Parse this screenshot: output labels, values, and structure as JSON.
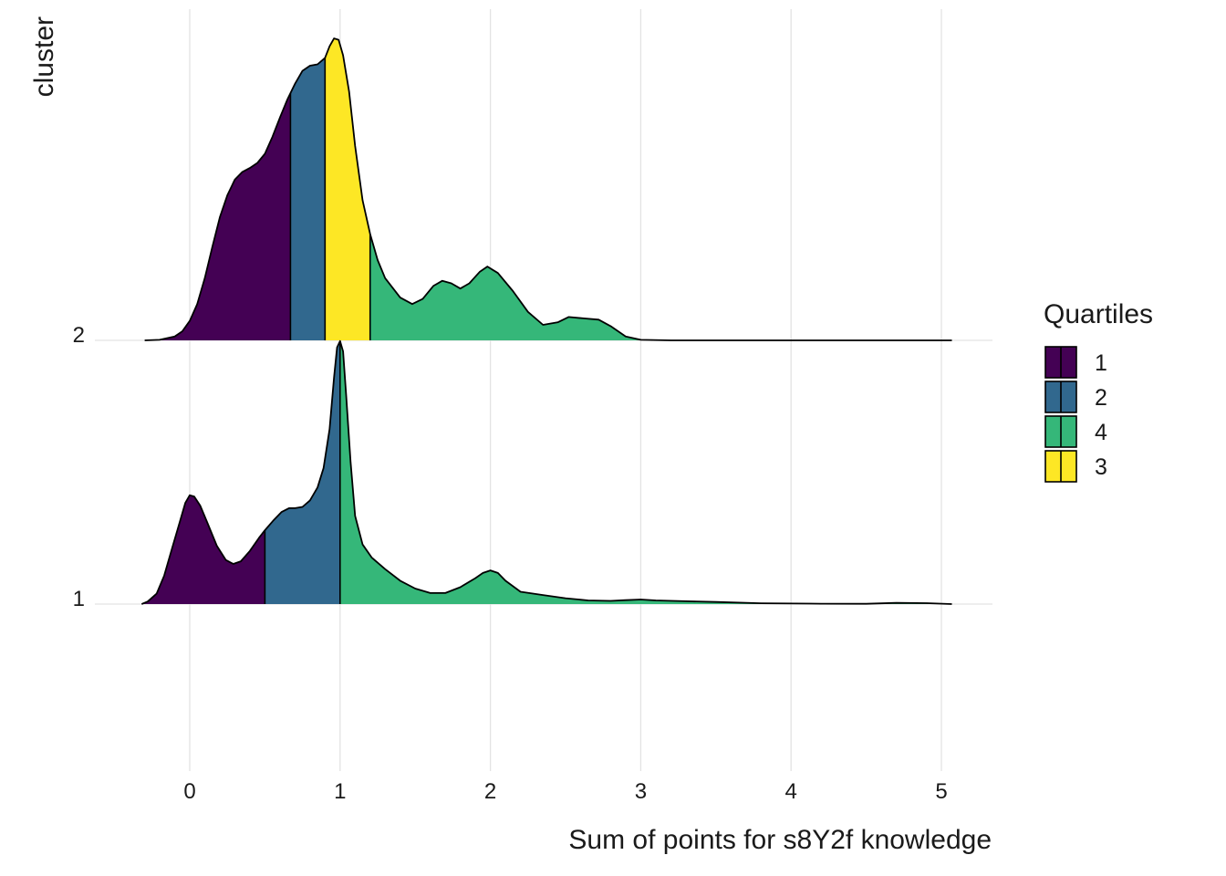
{
  "chart_data": {
    "type": "ridgeline-density",
    "title": "",
    "xlabel": "Sum of points for s8Y2f knowledge",
    "ylabel": "cluster",
    "xlim": [
      -0.6,
      5.3
    ],
    "x_ticks": [
      0,
      1,
      2,
      3,
      4,
      5
    ],
    "y_categories": [
      "1",
      "2"
    ],
    "grid": "vertical major lines",
    "legend": {
      "title": "Quartiles",
      "position": "right",
      "items": [
        {
          "label": "1",
          "color": "#440154"
        },
        {
          "label": "2",
          "color": "#31688E"
        },
        {
          "label": "4",
          "color": "#35B779"
        },
        {
          "label": "3",
          "color": "#FDE725"
        }
      ]
    },
    "series": [
      {
        "cluster": "1",
        "quartile_cuts": [
          0.5,
          1.0
        ],
        "fill_order": [
          "1",
          "2",
          "4"
        ],
        "density": [
          [
            -0.32,
            0
          ],
          [
            -0.28,
            0.02
          ],
          [
            -0.22,
            0.08
          ],
          [
            -0.17,
            0.22
          ],
          [
            -0.12,
            0.42
          ],
          [
            -0.07,
            0.62
          ],
          [
            -0.03,
            0.78
          ],
          [
            0.0,
            0.84
          ],
          [
            0.03,
            0.83
          ],
          [
            0.07,
            0.76
          ],
          [
            0.12,
            0.62
          ],
          [
            0.18,
            0.45
          ],
          [
            0.24,
            0.34
          ],
          [
            0.29,
            0.31
          ],
          [
            0.34,
            0.33
          ],
          [
            0.4,
            0.41
          ],
          [
            0.46,
            0.51
          ],
          [
            0.5,
            0.57
          ],
          [
            0.56,
            0.65
          ],
          [
            0.61,
            0.71
          ],
          [
            0.66,
            0.74
          ],
          [
            0.7,
            0.74
          ],
          [
            0.75,
            0.75
          ],
          [
            0.8,
            0.8
          ],
          [
            0.85,
            0.9
          ],
          [
            0.89,
            1.05
          ],
          [
            0.93,
            1.35
          ],
          [
            0.96,
            1.75
          ],
          [
            0.98,
            1.98
          ],
          [
            1.0,
            2.03
          ],
          [
            1.02,
            1.95
          ],
          [
            1.04,
            1.62
          ],
          [
            1.07,
            1.1
          ],
          [
            1.1,
            0.68
          ],
          [
            1.15,
            0.46
          ],
          [
            1.21,
            0.36
          ],
          [
            1.3,
            0.27
          ],
          [
            1.4,
            0.18
          ],
          [
            1.5,
            0.12
          ],
          [
            1.6,
            0.085
          ],
          [
            1.7,
            0.085
          ],
          [
            1.8,
            0.13
          ],
          [
            1.9,
            0.2
          ],
          [
            1.95,
            0.24
          ],
          [
            2.0,
            0.26
          ],
          [
            2.05,
            0.24
          ],
          [
            2.1,
            0.18
          ],
          [
            2.2,
            0.095
          ],
          [
            2.35,
            0.07
          ],
          [
            2.5,
            0.045
          ],
          [
            2.65,
            0.028
          ],
          [
            2.8,
            0.025
          ],
          [
            2.9,
            0.03
          ],
          [
            3.0,
            0.035
          ],
          [
            3.1,
            0.028
          ],
          [
            3.3,
            0.022
          ],
          [
            3.5,
            0.016
          ],
          [
            3.8,
            0.006
          ],
          [
            4.2,
            0.003
          ],
          [
            4.5,
            0.002
          ],
          [
            4.7,
            0.009
          ],
          [
            4.9,
            0.007
          ],
          [
            5.07,
            0
          ]
        ]
      },
      {
        "cluster": "2",
        "quartile_cuts": [
          0.67,
          0.9,
          1.2
        ],
        "fill_order": [
          "1",
          "2",
          "3",
          "4"
        ],
        "density": [
          [
            -0.3,
            0
          ],
          [
            -0.2,
            0.004
          ],
          [
            -0.1,
            0.03
          ],
          [
            -0.05,
            0.07
          ],
          [
            0.0,
            0.15
          ],
          [
            0.05,
            0.28
          ],
          [
            0.1,
            0.48
          ],
          [
            0.15,
            0.72
          ],
          [
            0.2,
            0.95
          ],
          [
            0.25,
            1.12
          ],
          [
            0.3,
            1.24
          ],
          [
            0.35,
            1.3
          ],
          [
            0.4,
            1.33
          ],
          [
            0.45,
            1.37
          ],
          [
            0.5,
            1.44
          ],
          [
            0.55,
            1.57
          ],
          [
            0.6,
            1.72
          ],
          [
            0.65,
            1.86
          ],
          [
            0.7,
            1.98
          ],
          [
            0.75,
            2.08
          ],
          [
            0.8,
            2.12
          ],
          [
            0.85,
            2.13
          ],
          [
            0.9,
            2.18
          ],
          [
            0.93,
            2.27
          ],
          [
            0.96,
            2.33
          ],
          [
            0.99,
            2.32
          ],
          [
            1.02,
            2.2
          ],
          [
            1.06,
            1.92
          ],
          [
            1.1,
            1.5
          ],
          [
            1.15,
            1.08
          ],
          [
            1.2,
            0.82
          ],
          [
            1.25,
            0.62
          ],
          [
            1.3,
            0.48
          ],
          [
            1.4,
            0.33
          ],
          [
            1.48,
            0.28
          ],
          [
            1.55,
            0.32
          ],
          [
            1.62,
            0.42
          ],
          [
            1.68,
            0.46
          ],
          [
            1.74,
            0.44
          ],
          [
            1.8,
            0.4
          ],
          [
            1.86,
            0.44
          ],
          [
            1.93,
            0.53
          ],
          [
            1.98,
            0.57
          ],
          [
            2.05,
            0.52
          ],
          [
            2.15,
            0.38
          ],
          [
            2.25,
            0.22
          ],
          [
            2.35,
            0.12
          ],
          [
            2.45,
            0.14
          ],
          [
            2.52,
            0.18
          ],
          [
            2.62,
            0.17
          ],
          [
            2.72,
            0.16
          ],
          [
            2.8,
            0.11
          ],
          [
            2.9,
            0.03
          ],
          [
            3.0,
            0.004
          ],
          [
            3.2,
            0
          ],
          [
            5.07,
            0
          ]
        ]
      }
    ]
  }
}
